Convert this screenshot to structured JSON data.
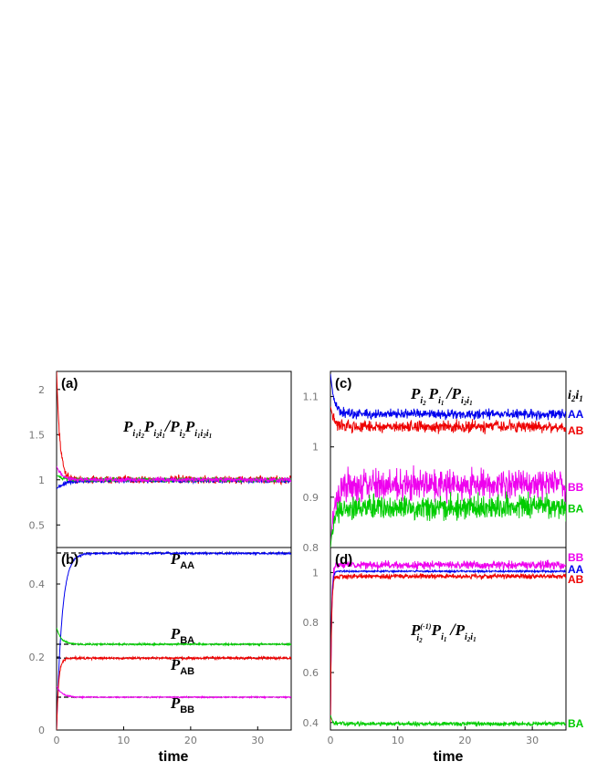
{
  "chart_data": [
    {
      "panel": "(a)",
      "type": "line",
      "xlabel": "",
      "ylabel": "",
      "xlim": [
        0,
        35
      ],
      "ylim": [
        0.25,
        2.2
      ],
      "yticks": [
        0.5,
        1,
        1.5,
        2
      ],
      "ytick_labels": [
        "0.5",
        "1",
        "1.5",
        "2"
      ],
      "formula": {
        "base": "P",
        "parts": [
          [
            "i",
            "1",
            "i",
            "2"
          ],
          [
            "i",
            "2",
            "i",
            "1"
          ],
          [
            "i",
            "2"
          ],
          [
            "i",
            "1",
            "i",
            "2",
            "i",
            "1"
          ]
        ]
      },
      "series": [
        {
          "color": "#ee0000",
          "start": 2.2,
          "plateau": 1.0,
          "tau": 0.5,
          "noise": 0.035
        },
        {
          "color": "#0000ee",
          "start": 0.9,
          "plateau": 0.99,
          "tau": 1.2,
          "noise": 0.02
        },
        {
          "color": "#00cc00",
          "start": 1.05,
          "plateau": 1.0,
          "tau": 1.0,
          "noise": 0.02
        },
        {
          "color": "#ee00ee",
          "start": 1.15,
          "plateau": 1.0,
          "tau": 0.8,
          "noise": 0.02
        }
      ]
    },
    {
      "panel": "(b)",
      "type": "line",
      "xlabel": "time",
      "ylabel": "",
      "xlim": [
        0,
        35
      ],
      "xticks": [
        0,
        10,
        20,
        30
      ],
      "xtick_labels": [
        "0",
        "10",
        "20",
        "30"
      ],
      "ylim": [
        0,
        0.5
      ],
      "yticks": [
        0,
        0.2,
        0.4
      ],
      "ytick_labels": [
        "0",
        "0.2",
        "0.4"
      ],
      "series": [
        {
          "name": "AA",
          "color": "#0000ee",
          "start": 0.0,
          "plateau": 0.484,
          "peak": null,
          "tau": 0.8,
          "noise": 0.0025,
          "reference": 0.485
        },
        {
          "name": "BA",
          "color": "#00cc00",
          "start": 0.28,
          "plateau": 0.235,
          "peak": null,
          "tau": 0.7,
          "noise": 0.002,
          "reference": 0.235
        },
        {
          "name": "AB",
          "color": "#ee0000",
          "start": 0.0,
          "plateau": 0.197,
          "peak": null,
          "tau": 0.3,
          "noise": 0.003,
          "reference": 0.197
        },
        {
          "name": "BB",
          "color": "#ee00ee",
          "start": 0.12,
          "plateau": 0.09,
          "peak": null,
          "tau": 0.8,
          "noise": 0.0015,
          "reference": 0.09
        }
      ],
      "labels": [
        {
          "sub": "AA",
          "x": 17,
          "y": 0.455
        },
        {
          "sub": "BA",
          "x": 17,
          "y": 0.25
        },
        {
          "sub": "AB",
          "x": 17,
          "y": 0.165
        },
        {
          "sub": "BB",
          "x": 17,
          "y": 0.06
        }
      ]
    },
    {
      "panel": "(c)",
      "type": "line",
      "xlabel": "",
      "ylabel": "",
      "xlim": [
        0,
        35
      ],
      "ylim": [
        0.8,
        1.15
      ],
      "yticks": [
        0.8,
        0.9,
        1,
        1.1
      ],
      "ytick_labels": [
        "0.8",
        "0.9",
        "1",
        "1.1"
      ],
      "legend_title": "i2i1",
      "series": [
        {
          "name": "AA",
          "color": "#0000ee",
          "start": 1.145,
          "plateau": 1.065,
          "tau": 0.6,
          "noise": 0.008
        },
        {
          "name": "AB",
          "color": "#ee0000",
          "start": 1.08,
          "plateau": 1.04,
          "tau": 0.6,
          "noise": 0.01
        },
        {
          "name": "BB",
          "color": "#ee00ee",
          "start": 0.8,
          "plateau": 0.925,
          "tau": 0.6,
          "noise": 0.025
        },
        {
          "name": "BA",
          "color": "#00cc00",
          "start": 0.8,
          "plateau": 0.88,
          "tau": 0.5,
          "noise": 0.02
        }
      ]
    },
    {
      "panel": "(d)",
      "type": "line",
      "xlabel": "time",
      "ylabel": "",
      "xlim": [
        0,
        35
      ],
      "xticks": [
        0,
        10,
        20,
        30
      ],
      "xtick_labels": [
        "0",
        "10",
        "20",
        "30"
      ],
      "ylim": [
        0.37,
        1.1
      ],
      "yticks": [
        0.4,
        0.6,
        0.8,
        1
      ],
      "ytick_labels": [
        "0.4",
        "0.6",
        "0.8",
        "1"
      ],
      "series": [
        {
          "name": "BB",
          "color": "#ee00ee",
          "start": 0.4,
          "plateau": 1.03,
          "tau": 0.15,
          "noise": 0.014
        },
        {
          "name": "AA",
          "color": "#0000ee",
          "start": 0.4,
          "plateau": 1.005,
          "tau": 0.15,
          "noise": 0.003
        },
        {
          "name": "AB",
          "color": "#ee0000",
          "start": 0.4,
          "plateau": 0.985,
          "tau": 0.15,
          "noise": 0.008
        },
        {
          "name": "BA",
          "color": "#00cc00",
          "start": 0.43,
          "plateau": 0.395,
          "tau": 0.3,
          "noise": 0.007
        }
      ]
    }
  ]
}
